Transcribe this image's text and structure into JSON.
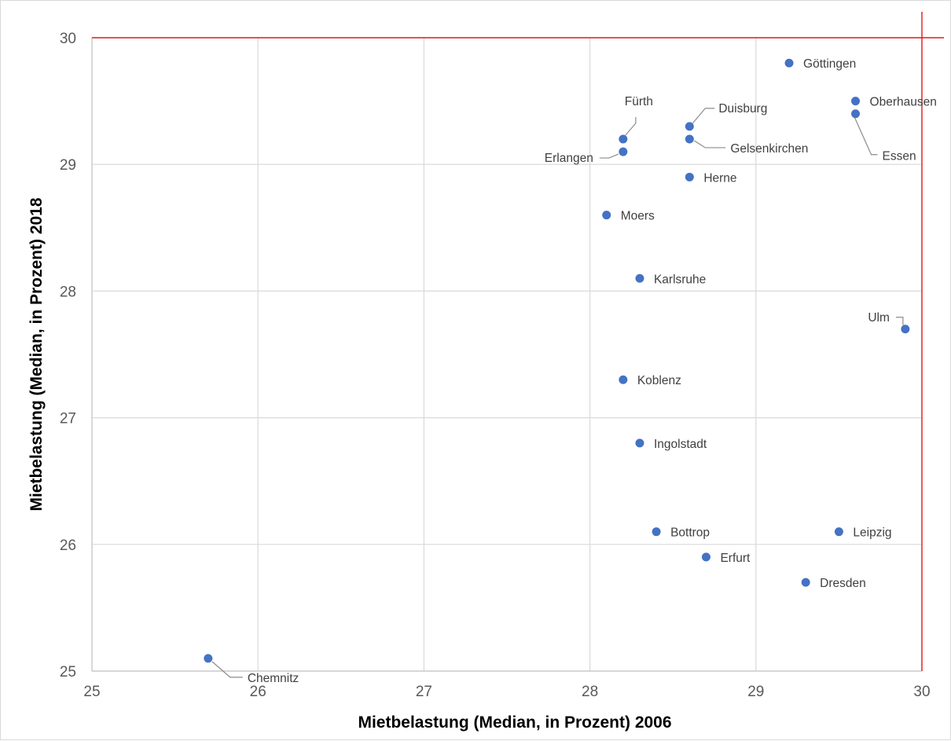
{
  "chart_data": {
    "type": "scatter",
    "title": "",
    "xlabel": "Mietbelastung (Median, in Prozent) 2006",
    "ylabel": "Mietbelastung (Median, in Prozent) 2018",
    "xlim": [
      25,
      30
    ],
    "ylim": [
      25,
      30
    ],
    "x_ticks": [
      "25",
      "26",
      "27",
      "28",
      "29",
      "30"
    ],
    "y_ticks": [
      "25",
      "26",
      "27",
      "28",
      "29",
      "30"
    ],
    "grid": true,
    "marker_color": "#4472c4",
    "reference_line_color": "#e31a1c",
    "reference_lines": {
      "x": 30,
      "y": 30
    },
    "points": [
      {
        "label": "Göttingen",
        "x": 29.2,
        "y": 29.8
      },
      {
        "label": "Oberhausen",
        "x": 29.6,
        "y": 29.5
      },
      {
        "label": "Essen",
        "x": 29.6,
        "y": 29.4
      },
      {
        "label": "Fürth",
        "x": 28.2,
        "y": 29.2
      },
      {
        "label": "Erlangen",
        "x": 28.2,
        "y": 29.1
      },
      {
        "label": "Duisburg",
        "x": 28.6,
        "y": 29.3
      },
      {
        "label": "Gelsenkirchen",
        "x": 28.6,
        "y": 29.2
      },
      {
        "label": "Herne",
        "x": 28.6,
        "y": 28.9
      },
      {
        "label": "Moers",
        "x": 28.1,
        "y": 28.6
      },
      {
        "label": "Karlsruhe",
        "x": 28.3,
        "y": 28.1
      },
      {
        "label": "Ulm",
        "x": 29.9,
        "y": 27.7
      },
      {
        "label": "Koblenz",
        "x": 28.2,
        "y": 27.3
      },
      {
        "label": "Ingolstadt",
        "x": 28.3,
        "y": 26.8
      },
      {
        "label": "Bottrop",
        "x": 28.4,
        "y": 26.1
      },
      {
        "label": "Leipzig",
        "x": 29.5,
        "y": 26.1
      },
      {
        "label": "Erfurt",
        "x": 28.7,
        "y": 25.9
      },
      {
        "label": "Dresden",
        "x": 29.3,
        "y": 25.7
      },
      {
        "label": "Chemnitz",
        "x": 25.7,
        "y": 25.1
      }
    ]
  }
}
